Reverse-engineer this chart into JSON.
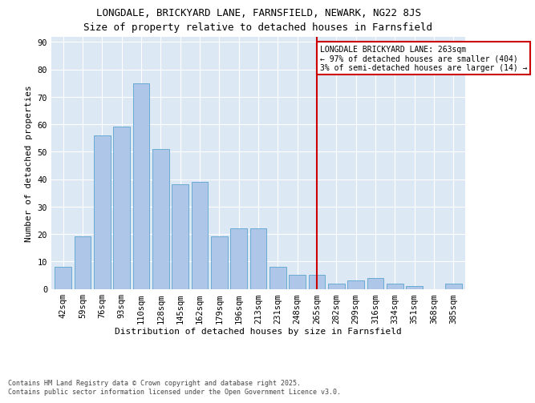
{
  "title": "LONGDALE, BRICKYARD LANE, FARNSFIELD, NEWARK, NG22 8JS",
  "subtitle": "Size of property relative to detached houses in Farnsfield",
  "xlabel": "Distribution of detached houses by size in Farnsfield",
  "ylabel": "Number of detached properties",
  "categories": [
    "42sqm",
    "59sqm",
    "76sqm",
    "93sqm",
    "110sqm",
    "128sqm",
    "145sqm",
    "162sqm",
    "179sqm",
    "196sqm",
    "213sqm",
    "231sqm",
    "248sqm",
    "265sqm",
    "282sqm",
    "299sqm",
    "316sqm",
    "334sqm",
    "351sqm",
    "368sqm",
    "385sqm"
  ],
  "values": [
    8,
    19,
    56,
    59,
    75,
    51,
    38,
    39,
    19,
    22,
    22,
    8,
    5,
    5,
    2,
    3,
    4,
    2,
    1,
    0,
    2
  ],
  "bar_color": "#aec6e8",
  "bar_edge_color": "#6aaad4",
  "vline_x_index": 13,
  "vline_color": "#cc0000",
  "annotation_text": "LONGDALE BRICKYARD LANE: 263sqm\n← 97% of detached houses are smaller (404)\n3% of semi-detached houses are larger (14) →",
  "annotation_box_color": "#cc0000",
  "ylim": [
    0,
    92
  ],
  "yticks": [
    0,
    10,
    20,
    30,
    40,
    50,
    60,
    70,
    80,
    90
  ],
  "background_color": "#dde8f5",
  "footer_text": "Contains HM Land Registry data © Crown copyright and database right 2025.\nContains public sector information licensed under the Open Government Licence v3.0.",
  "title_fontsize": 9,
  "xlabel_fontsize": 8,
  "ylabel_fontsize": 8,
  "tick_fontsize": 7.5,
  "annot_fontsize": 7
}
